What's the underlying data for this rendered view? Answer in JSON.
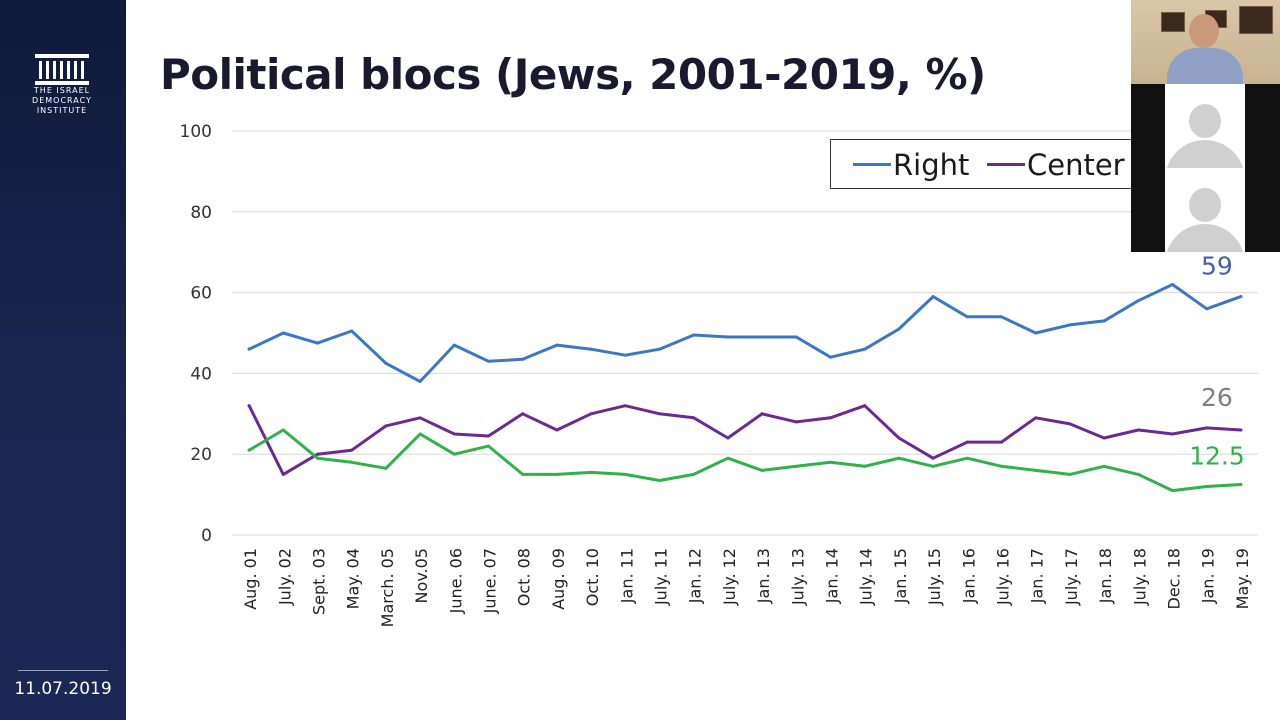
{
  "sidebar": {
    "logo_lines": [
      "THE ISRAEL",
      "DEMOCRACY",
      "INSTITUTE"
    ],
    "date": "11.07.2019"
  },
  "slide": {
    "title": "Political blocs (Jews, 2001-2019, %)"
  },
  "video_call": {
    "participants": [
      "presenter-video",
      "participant-avatar",
      "participant-avatar"
    ]
  },
  "chart_data": {
    "type": "line",
    "title": "Political blocs (Jews, 2001-2019, %)",
    "xlabel": "",
    "ylabel": "",
    "ylim": [
      0,
      100
    ],
    "yticks": [
      0,
      20,
      40,
      60,
      80,
      100
    ],
    "grid": true,
    "legend": "top-right",
    "categories": [
      "Aug. 01",
      "July. 02",
      "Sept. 03",
      "May. 04",
      "March. 05",
      "Nov.05",
      "June. 06",
      "June. 07",
      "Oct. 08",
      "Aug. 09",
      "Oct. 10",
      "Jan. 11",
      "July. 11",
      "Jan. 12",
      "July. 12",
      "Jan. 13",
      "July. 13",
      "Jan. 14",
      "July. 14",
      "Jan. 15",
      "July. 15",
      "Jan. 16",
      "July. 16",
      "Jan. 17",
      "July. 17",
      "Jan. 18",
      "July. 18",
      "Dec. 18",
      "Jan. 19",
      "May. 19"
    ],
    "series": [
      {
        "name": "Right",
        "color": "#3a78c6",
        "legend": true,
        "values": [
          46,
          50,
          47.5,
          50.5,
          42.5,
          38,
          47,
          43,
          43.5,
          47,
          46,
          44.5,
          46,
          49.5,
          49,
          49,
          49,
          44,
          46,
          51,
          59,
          54,
          54,
          50,
          52,
          53,
          58,
          62,
          56,
          59
        ],
        "end_label": "59",
        "end_label_color": "#4b5fb0"
      },
      {
        "name": "Center",
        "color": "#6a2a92",
        "legend": true,
        "values": [
          32,
          15,
          20,
          21,
          27,
          29,
          25,
          24.5,
          30,
          26,
          30,
          32,
          30,
          29,
          24,
          30,
          28,
          29,
          32,
          24,
          19,
          23,
          23,
          29,
          27.5,
          24,
          26,
          25,
          26.5,
          26
        ],
        "end_label": "26",
        "end_label_color": "#7f7f7f"
      },
      {
        "name": "",
        "color": "#2fb24a",
        "legend": false,
        "values": [
          21,
          26,
          19,
          18,
          16.5,
          25,
          20,
          22,
          15,
          15,
          15.5,
          15,
          13.5,
          15,
          19,
          16,
          17,
          18,
          17,
          19,
          17,
          19,
          17,
          16,
          15,
          17,
          15,
          11,
          12,
          12.5
        ],
        "end_label": "12.5",
        "end_label_color": "#2fb24a"
      }
    ]
  }
}
